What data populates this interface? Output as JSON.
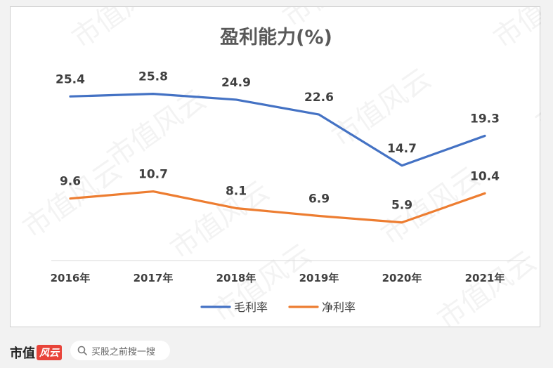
{
  "chart_data": {
    "type": "line",
    "title": "盈利能力(%)",
    "categories": [
      "2016年",
      "2017年",
      "2018年",
      "2019年",
      "2020年",
      "2021年"
    ],
    "series": [
      {
        "name": "毛利率",
        "color": "#4472c4",
        "values": [
          25.4,
          25.8,
          24.9,
          22.6,
          14.7,
          19.3
        ]
      },
      {
        "name": "净利率",
        "color": "#ed7d31",
        "values": [
          9.6,
          10.7,
          8.1,
          6.9,
          5.9,
          10.4
        ]
      }
    ],
    "legend_position": "bottom",
    "grid": false,
    "data_labels": true
  },
  "watermark": {
    "text": "市值风云"
  },
  "footer": {
    "brand": "市值",
    "brand_logo": "风云",
    "search_placeholder": "买股之前搜一搜"
  }
}
